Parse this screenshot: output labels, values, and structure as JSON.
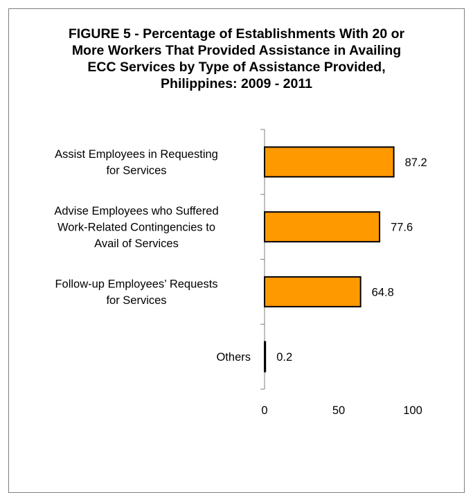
{
  "chart_data": {
    "type": "bar",
    "orientation": "horizontal",
    "title": "FIGURE 5 - Percentage of Establishments With 20 or\nMore Workers That Provided Assistance in Availing\nECC Services by Type of Assistance Provided,\nPhilippines: 2009 - 2011",
    "categories": [
      [
        "Assist Employees in Requesting",
        "for Services"
      ],
      [
        "Advise Employees who Suffered",
        "Work-Related Contingencies to",
        "Avail of Services"
      ],
      [
        "Follow-up Employees’ Requests",
        "for Services"
      ],
      [
        "Others"
      ]
    ],
    "values": [
      87.2,
      77.6,
      64.8,
      0.2
    ],
    "value_labels": [
      "87.2",
      "77.6",
      "64.8",
      "0.2"
    ],
    "xlim": [
      0,
      100
    ],
    "xticks": [
      0,
      50,
      100
    ],
    "xtick_labels": [
      "0",
      "50",
      "100"
    ],
    "bar_color": "#FF9900",
    "bar_edge_color": "#000000",
    "grid": false,
    "legend": "none"
  }
}
